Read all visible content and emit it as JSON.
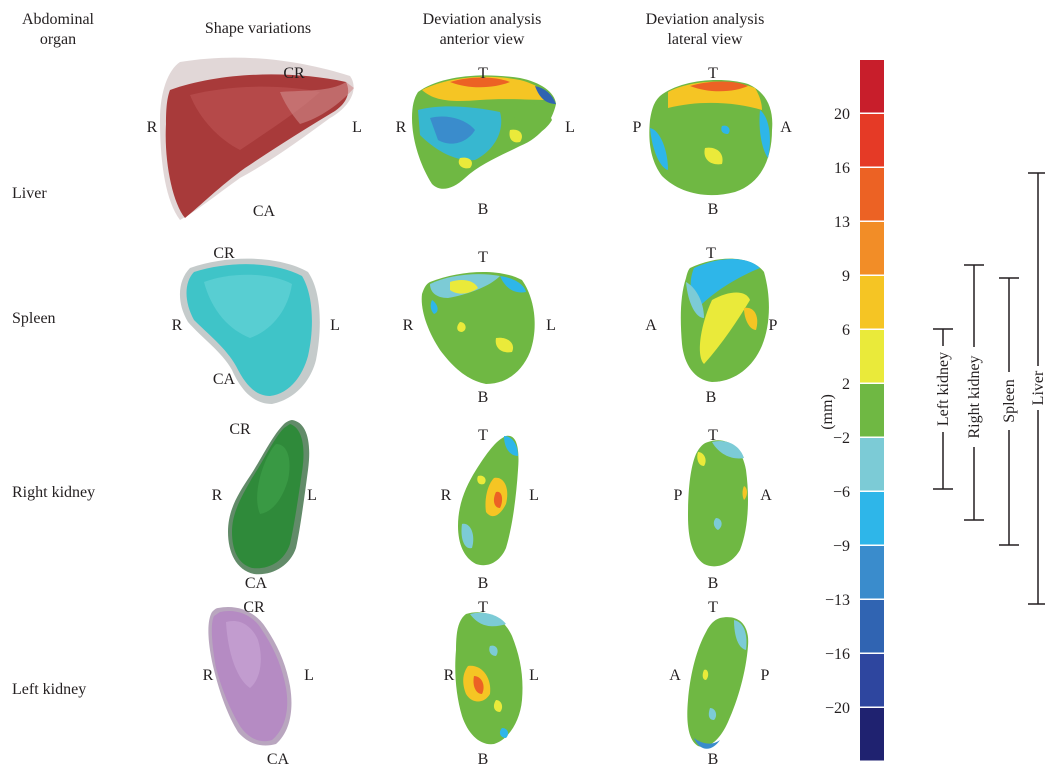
{
  "headers": {
    "organ_line1": "Abdominal",
    "organ_line2": "organ",
    "shape": "Shape variations",
    "anterior_line1": "Deviation analysis",
    "anterior_line2": "anterior view",
    "lateral_line1": "Deviation analysis",
    "lateral_line2": "lateral view"
  },
  "rows": [
    {
      "organ": "Liver",
      "shape": {
        "top": "CR",
        "left": "R",
        "right": "L",
        "bottom": "CA"
      },
      "anterior": {
        "top": "T",
        "left": "R",
        "right": "L",
        "bottom": "B"
      },
      "lateral": {
        "top": "T",
        "left": "P",
        "right": "A",
        "bottom": "B"
      }
    },
    {
      "organ": "Spleen",
      "shape": {
        "top": "CR",
        "left": "R",
        "right": "L",
        "bottom": "CA"
      },
      "anterior": {
        "top": "T",
        "left": "R",
        "right": "L",
        "bottom": "B"
      },
      "lateral": {
        "top": "T",
        "left": "A",
        "right": "P",
        "bottom": "B"
      }
    },
    {
      "organ": "Right kidney",
      "shape": {
        "top": "CR",
        "left": "R",
        "right": "L",
        "bottom": "CA"
      },
      "anterior": {
        "top": "T",
        "left": "R",
        "right": "L",
        "bottom": "B"
      },
      "lateral": {
        "top": "T",
        "left": "P",
        "right": "A",
        "bottom": "B"
      }
    },
    {
      "organ": "Left kidney",
      "shape": {
        "top": "CR",
        "left": "R",
        "right": "L",
        "bottom": "CA"
      },
      "anterior": {
        "top": "T",
        "left": "R",
        "right": "L",
        "bottom": "B"
      },
      "lateral": {
        "top": "T",
        "left": "A",
        "right": "P",
        "bottom": "B"
      }
    }
  ],
  "colorbar": {
    "unit": "(mm)",
    "colors": [
      "#c81e2b",
      "#e53a26",
      "#ec6224",
      "#f28d27",
      "#f5c524",
      "#eaea3a",
      "#6fb843",
      "#7ccbd6",
      "#2eb6e9",
      "#3a8ccc",
      "#3064b2",
      "#2e469f",
      "#1f2270"
    ],
    "ticks": [
      "20",
      "16",
      "13",
      "9",
      "6",
      "2",
      "−2",
      "−6",
      "−9",
      "−13",
      "−16",
      "−20"
    ]
  },
  "ranges": [
    {
      "name": "Left kidney",
      "min": "−6",
      "max": "6"
    },
    {
      "name": "Right kidney",
      "min": "−8",
      "max": "9"
    },
    {
      "name": "Spleen",
      "min": "−9",
      "max": "8"
    },
    {
      "name": "Liver",
      "min": "−13",
      "max": "14"
    }
  ]
}
